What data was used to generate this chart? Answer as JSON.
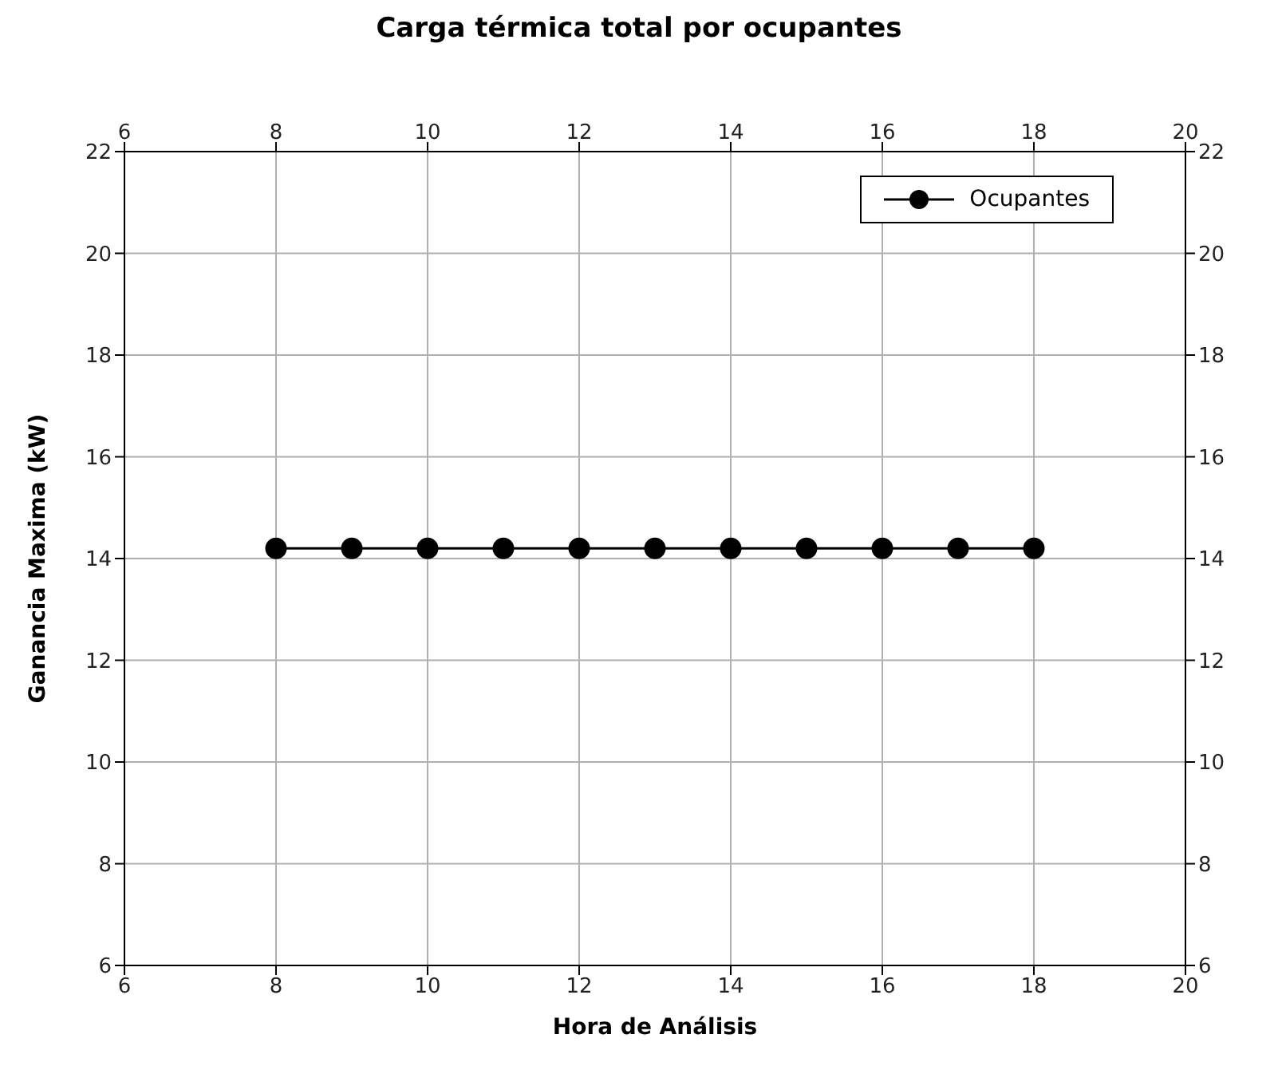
{
  "chart_data": {
    "type": "line",
    "title": "Carga térmica total por ocupantes",
    "xlabel": "Hora de Análisis",
    "ylabel": "Ganancia Maxima (kW)",
    "x": [
      8,
      9,
      10,
      11,
      12,
      13,
      14,
      15,
      16,
      17,
      18
    ],
    "series": [
      {
        "name": "Ocupantes",
        "color": "#000000",
        "values": [
          14.2,
          14.2,
          14.2,
          14.2,
          14.2,
          14.2,
          14.2,
          14.2,
          14.2,
          14.2,
          14.2
        ]
      }
    ],
    "xlim": [
      6,
      20
    ],
    "xticks": [
      6,
      8,
      10,
      12,
      14,
      16,
      18,
      20
    ],
    "x2lim": [
      6,
      20
    ],
    "x2ticks": [
      6,
      8,
      10,
      12,
      14,
      16,
      18,
      20
    ],
    "ylim": [
      6,
      22
    ],
    "yticks": [
      6,
      8,
      10,
      12,
      14,
      16,
      18,
      20,
      22
    ],
    "y2lim": [
      6,
      22
    ],
    "y2ticks": [
      6,
      8,
      10,
      12,
      14,
      16,
      18,
      20,
      22
    ],
    "grid": true,
    "legend": "top right",
    "marker": "circle",
    "line_style": "solid"
  }
}
